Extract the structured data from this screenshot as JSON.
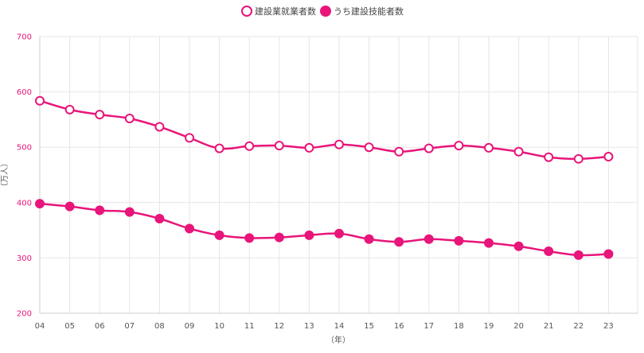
{
  "chart_data": {
    "type": "line",
    "categories": [
      "04",
      "05",
      "06",
      "07",
      "08",
      "09",
      "10",
      "11",
      "12",
      "13",
      "14",
      "15",
      "16",
      "17",
      "18",
      "19",
      "20",
      "21",
      "22",
      "23"
    ],
    "series": [
      {
        "name": "建設業就業者数",
        "marker": "hollow",
        "values": [
          584,
          568,
          559,
          552,
          537,
          517,
          498,
          502,
          503,
          499,
          505,
          500,
          492,
          498,
          503,
          499,
          492,
          482,
          479,
          483
        ]
      },
      {
        "name": "うち建設技能者数",
        "marker": "filled",
        "values": [
          398,
          393,
          386,
          383,
          371,
          353,
          341,
          336,
          337,
          341,
          344,
          334,
          329,
          334,
          331,
          327,
          321,
          312,
          305,
          307
        ]
      }
    ],
    "xlabel": "（年）",
    "ylabel": "（万人）",
    "ylim": [
      200,
      700
    ],
    "yticks": [
      200,
      300,
      400,
      500,
      600,
      700
    ],
    "grid": true,
    "legend": "top-center",
    "colors": {
      "line": "#E8157A",
      "y_tick_text": "#E8157A",
      "grid": "#E6E6E6",
      "axis": "#CCCCCC"
    }
  }
}
